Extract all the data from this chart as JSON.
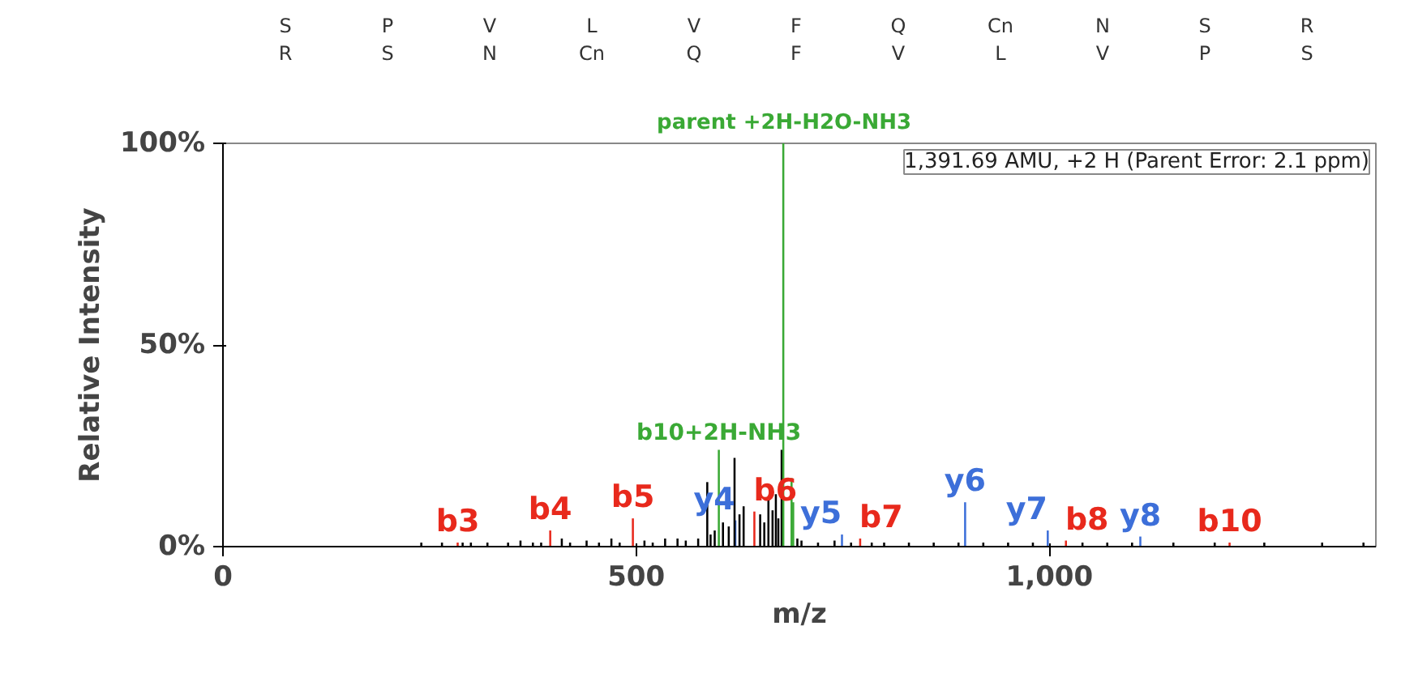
{
  "chart_data": {
    "type": "bar",
    "xlabel": "m/z",
    "ylabel": "Relative Intensity",
    "xlim": [
      0,
      1395
    ],
    "xticks": [
      0,
      500,
      {
        "value": 1000,
        "label": "1,000"
      }
    ],
    "ylim": [
      0,
      100
    ],
    "yticks": [
      {
        "value": 0,
        "label": "0%"
      },
      {
        "value": 50,
        "label": "50%"
      },
      {
        "value": 100,
        "label": "100%"
      }
    ],
    "grid": false,
    "annotations": [
      "S P V L V F Q Cn N S R",
      "R S N Cn Q F V L V P S",
      "1,391.69 AMU, +2 H (Parent Error: 2.1 ppm)"
    ],
    "series": [
      {
        "color": "#000000",
        "x": [
          240,
          265,
          290,
          300,
          320,
          345,
          360,
          375,
          385,
          410,
          420,
          440,
          455,
          470,
          480,
          510,
          520,
          535,
          550,
          560,
          575,
          586,
          590,
          595,
          605,
          612,
          619,
          625,
          630,
          650,
          655,
          660,
          665,
          669,
          672,
          676,
          695,
          700,
          720,
          740,
          760,
          785,
          800,
          830,
          860,
          890,
          920,
          950,
          980,
          1040,
          1070,
          1100,
          1150,
          1200,
          1260,
          1330,
          1380
        ],
        "values": [
          1,
          1,
          1,
          1,
          1,
          1,
          1.5,
          1,
          1,
          2,
          1,
          1.5,
          1,
          2,
          1,
          1.5,
          1,
          2,
          2,
          1.5,
          2,
          16,
          3,
          4,
          6,
          5,
          22,
          8,
          10,
          8,
          6,
          12,
          9,
          13,
          7,
          24,
          2,
          1.5,
          1,
          1.5,
          1,
          1,
          1,
          1,
          1,
          1,
          1,
          1,
          1,
          1,
          1,
          1,
          1,
          1,
          1,
          1,
          1
        ]
      },
      {
        "color": "#3aa935",
        "x": [
          600,
          678,
          688,
          690
        ],
        "values": [
          24,
          100,
          17,
          11
        ],
        "value_labels": [
          "b10+2H-NH3",
          "parent +2H-H2O-NH3",
          null,
          null
        ]
      },
      {
        "color": "#e8291c",
        "x": [
          284,
          396,
          496,
          643,
          771,
          1020,
          1218
        ],
        "values": [
          1,
          4,
          7,
          8.7,
          2,
          1.5,
          1
        ],
        "value_labels": [
          "b3",
          "b4",
          "b5",
          "b6",
          "b7",
          "b8",
          "b10"
        ]
      },
      {
        "color": "#3d6fd9",
        "x": [
          620,
          749,
          898,
          998,
          1110
        ],
        "values": [
          6.5,
          3,
          11,
          4,
          2.5
        ],
        "value_labels": [
          "y4",
          "y5",
          "y6",
          "y7",
          "y8"
        ]
      }
    ]
  }
}
